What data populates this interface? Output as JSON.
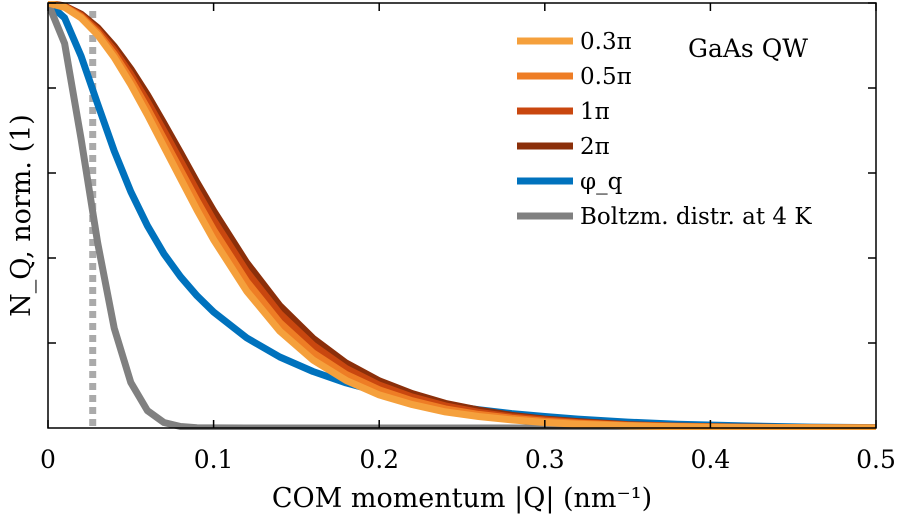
{
  "chart_data": {
    "type": "line",
    "title": "",
    "annotation": "GaAs QW",
    "xlabel": "COM momentum |Q| (nm⁻¹)",
    "ylabel": "N_Q, norm. (1)",
    "xlim": [
      0,
      0.5
    ],
    "ylim": [
      0,
      1
    ],
    "xticks": [
      0,
      0.1,
      0.2,
      0.3,
      0.4,
      0.5
    ],
    "xtick_labels": [
      "0",
      "0.1",
      "0.2",
      "0.3",
      "0.4",
      "0.5"
    ],
    "yticks": [
      0.2,
      0.4,
      0.6,
      0.8,
      1.0
    ],
    "ytick_labels": [],
    "grid": false,
    "legend_position": "top-right",
    "x": [
      0,
      0.01,
      0.02,
      0.03,
      0.04,
      0.05,
      0.06,
      0.07,
      0.08,
      0.09,
      0.1,
      0.12,
      0.14,
      0.16,
      0.18,
      0.2,
      0.22,
      0.24,
      0.26,
      0.28,
      0.3,
      0.32,
      0.35,
      0.38,
      0.42,
      0.46,
      0.5
    ],
    "series": [
      {
        "name": "0.3π",
        "color": "#F5A03C",
        "values": [
          1.0,
          0.99,
          0.965,
          0.925,
          0.872,
          0.808,
          0.737,
          0.662,
          0.587,
          0.513,
          0.443,
          0.322,
          0.228,
          0.16,
          0.112,
          0.078,
          0.055,
          0.038,
          0.027,
          0.019,
          0.013,
          0.009,
          0.005,
          0.003,
          0.001,
          0.0005,
          0.0002
        ]
      },
      {
        "name": "0.5π",
        "color": "#EE7D25",
        "values": [
          1.0,
          0.991,
          0.968,
          0.93,
          0.88,
          0.82,
          0.752,
          0.68,
          0.607,
          0.535,
          0.466,
          0.345,
          0.248,
          0.177,
          0.126,
          0.09,
          0.064,
          0.045,
          0.032,
          0.023,
          0.016,
          0.011,
          0.006,
          0.0035,
          0.0015,
          0.0006,
          0.0002
        ]
      },
      {
        "name": "1π",
        "color": "#C9470F",
        "values": [
          1.0,
          0.992,
          0.971,
          0.936,
          0.889,
          0.832,
          0.768,
          0.699,
          0.628,
          0.557,
          0.489,
          0.368,
          0.269,
          0.195,
          0.14,
          0.101,
          0.073,
          0.052,
          0.037,
          0.026,
          0.019,
          0.013,
          0.007,
          0.004,
          0.0017,
          0.0007,
          0.0003
        ]
      },
      {
        "name": "2π",
        "color": "#8B2F0A",
        "values": [
          1.0,
          0.993,
          0.974,
          0.942,
          0.898,
          0.845,
          0.784,
          0.717,
          0.648,
          0.578,
          0.511,
          0.389,
          0.288,
          0.211,
          0.153,
          0.111,
          0.081,
          0.058,
          0.042,
          0.03,
          0.021,
          0.015,
          0.008,
          0.0045,
          0.002,
          0.0008,
          0.0003
        ]
      },
      {
        "name": "φ_q",
        "color": "#0072BD",
        "values": [
          1.0,
          0.965,
          0.875,
          0.762,
          0.652,
          0.556,
          0.476,
          0.41,
          0.356,
          0.311,
          0.273,
          0.212,
          0.167,
          0.133,
          0.106,
          0.085,
          0.068,
          0.054,
          0.043,
          0.034,
          0.027,
          0.021,
          0.014,
          0.009,
          0.005,
          0.002,
          0.001
        ]
      },
      {
        "name": "Boltzm. distr. at 4 K",
        "color": "#808080",
        "values": [
          1.0,
          0.905,
          0.68,
          0.435,
          0.235,
          0.107,
          0.041,
          0.013,
          0.0035,
          0.0008,
          0.0002,
          0,
          0,
          0,
          0,
          0,
          0,
          0,
          0,
          0,
          0,
          0,
          0,
          0,
          0,
          0,
          0
        ]
      }
    ],
    "vertical_marker": {
      "x": 0.027,
      "color": "#AAAAAA",
      "style": "dotted"
    }
  }
}
